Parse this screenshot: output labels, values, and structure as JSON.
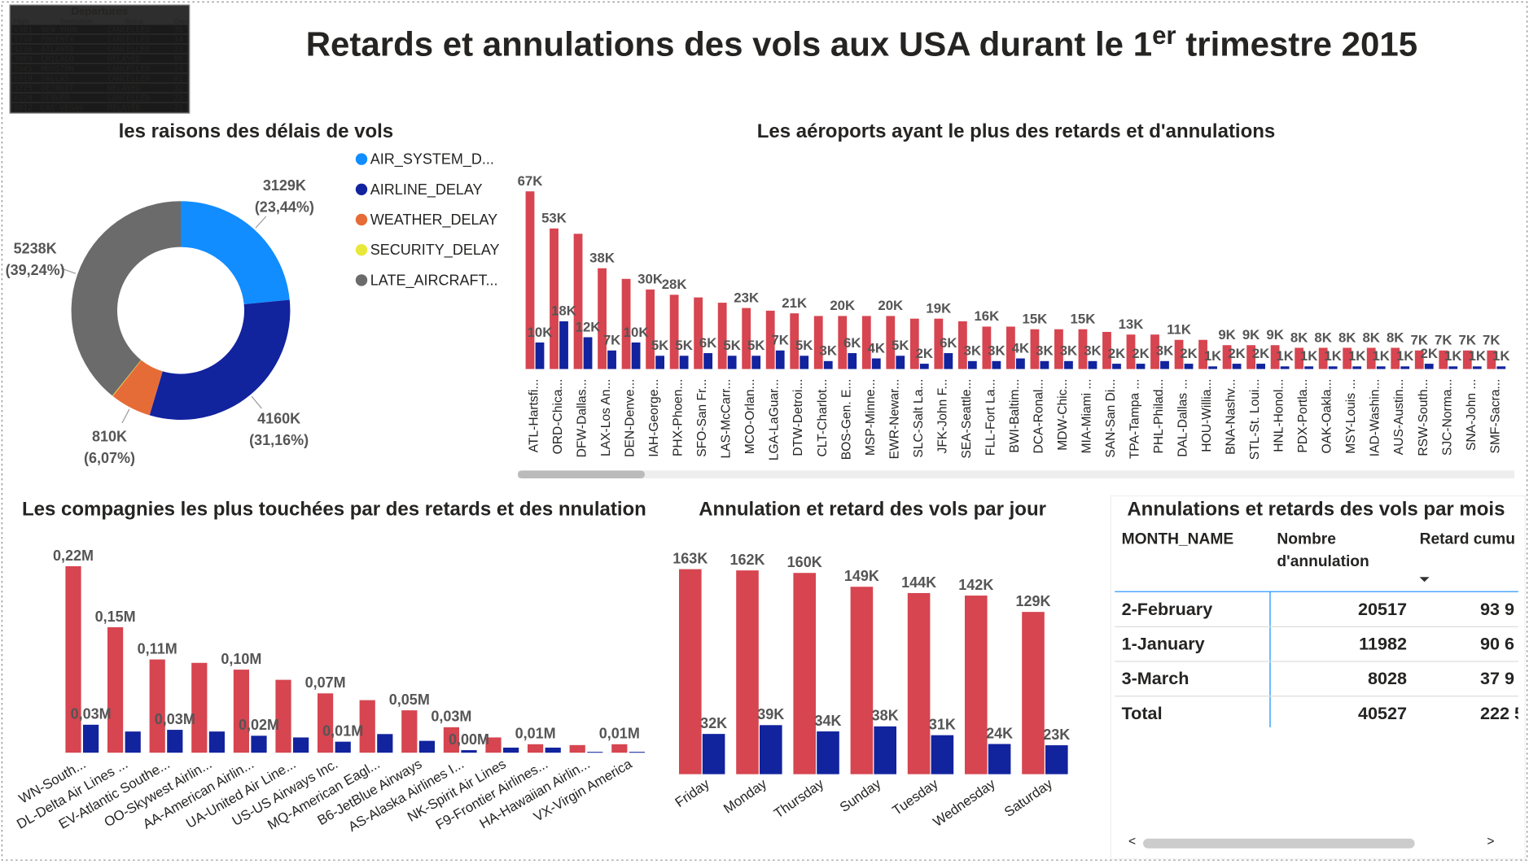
{
  "header": {
    "title": "Retards et annulations des vols aux USA durant le 1",
    "title_sup": "er",
    "title_end": " trimestre 2015"
  },
  "departures_board": {
    "title": "Departures",
    "columns": [
      "Flight",
      "Destination",
      "Status",
      "Gate"
    ],
    "rows": [
      [
        "0361",
        "NEW YORK",
        "CANCELLED",
        "36"
      ],
      [
        "1740",
        "PHOENIX",
        "CANCELLED",
        "14"
      ],
      [
        "4236",
        "ATLANTA",
        "CANCELLED",
        "23"
      ],
      [
        "3089",
        "CHICAGO",
        "DELAYED",
        "08"
      ],
      [
        "1645",
        "HOUSTON",
        "CANCELLED",
        "24"
      ],
      [
        "0919",
        "DALLAS",
        "CANCELLED",
        "01"
      ],
      [
        "3725",
        "DETROIT",
        "DELAYED",
        "32"
      ],
      [
        "0220",
        "DENVER",
        "CANCELLED",
        "22"
      ],
      [
        "8812",
        "LAS VEGAS",
        "DELAYED",
        "21"
      ]
    ]
  },
  "chart_data": [
    {
      "type": "donut",
      "title": "les raisons des délais de vols",
      "series": [
        {
          "name": "AIR_SYSTEM_D...",
          "color": "#118dff",
          "value": 3129,
          "value_label": "3129K",
          "percent": 23.44,
          "percent_label": "(23,44%)"
        },
        {
          "name": "AIRLINE_DELAY",
          "color": "#12239e",
          "value": 4160,
          "value_label": "4160K",
          "percent": 31.16,
          "percent_label": "(31,16%)"
        },
        {
          "name": "WEATHER_DELAY",
          "color": "#e66c37",
          "value": 810,
          "value_label": "810K",
          "percent": 6.07,
          "percent_label": "(6,07%)"
        },
        {
          "name": "SECURITY_DELAY",
          "color": "#e8e83a",
          "value": 12,
          "value_label": null,
          "percent": null,
          "percent_label": null
        },
        {
          "name": "LATE_AIRCRAFT...",
          "color": "#6b6b6b",
          "value": 5238,
          "value_label": "5238K",
          "percent": 39.24,
          "percent_label": "(39,24%)"
        }
      ]
    },
    {
      "type": "bar",
      "title": "Les aéroports ayant le plus des retards et d'annulations",
      "categories": [
        "ATL-Hartsfi...",
        "ORD-Chica...",
        "DFW-Dallas...",
        "LAX-Los An...",
        "DEN-Denve...",
        "IAH-George...",
        "PHX-Phoen...",
        "SFO-San Fr...",
        "LAS-McCarr...",
        "MCO-Orlan...",
        "LGA-LaGuar...",
        "DTW-Detroi...",
        "CLT-Charlot...",
        "BOS-Gen. E...",
        "MSP-Minne...",
        "EWR-Newar...",
        "SLC-Salt La...",
        "JFK-John F...",
        "SEA-Seattle...",
        "FLL-Fort La...",
        "BWI-Baltim...",
        "DCA-Ronal...",
        "MDW-Chic...",
        "MIA-Miami ...",
        "SAN-San Di...",
        "TPA-Tampa ...",
        "PHL-Philad...",
        "DAL-Dallas ...",
        "HOU-Willia...",
        "BNA-Nashv...",
        "STL-St. Loui...",
        "HNL-Honol...",
        "PDX-Portla...",
        "OAK-Oakla...",
        "MSY-Louis ...",
        "IAD-Washin...",
        "AUS-Austin...",
        "RSW-South...",
        "SJC-Norma...",
        "SNA-John ...",
        "SMF-Sacra..."
      ],
      "series": [
        {
          "color": "#d64550",
          "values": [
            67,
            53,
            51,
            38,
            34,
            30,
            28,
            27,
            25,
            23,
            22,
            21,
            20,
            20,
            20,
            20,
            19,
            19,
            18,
            16,
            16,
            15,
            15,
            15,
            14,
            13,
            13,
            11,
            11,
            9,
            9,
            9,
            8,
            8,
            8,
            8,
            8,
            7,
            7,
            7,
            7
          ],
          "value_labels": [
            "67K",
            "53K",
            null,
            "38K",
            null,
            "30K",
            "28K",
            null,
            null,
            "23K",
            null,
            "21K",
            null,
            "20K",
            null,
            "20K",
            null,
            "19K",
            null,
            "16K",
            null,
            "15K",
            null,
            "15K",
            null,
            "13K",
            null,
            "11K",
            null,
            "9K",
            "9K",
            "9K",
            "8K",
            "8K",
            "8K",
            "8K",
            "8K",
            "7K",
            "7K",
            "7K",
            "7K"
          ]
        },
        {
          "color": "#12239e",
          "values": [
            10,
            18,
            12,
            7,
            10,
            5,
            5,
            6,
            5,
            5,
            7,
            5,
            3,
            6,
            4,
            5,
            2,
            6,
            3,
            3,
            4,
            3,
            3,
            3,
            2,
            2,
            3,
            2,
            1,
            2,
            2,
            1,
            1,
            1,
            1,
            1,
            1,
            2,
            1,
            1,
            1
          ],
          "value_labels": [
            "10K",
            "18K",
            "12K",
            "7K",
            "10K",
            "5K",
            "5K",
            "6K",
            "5K",
            "5K",
            "7K",
            "5K",
            "3K",
            "6K",
            "4K",
            "5K",
            "2K",
            "6K",
            "3K",
            "3K",
            "4K",
            "3K",
            "3K",
            "3K",
            "2K",
            "2K",
            "3K",
            "2K",
            "1K",
            "2K",
            "2K",
            "1K",
            "1K",
            "1K",
            "1K",
            "1K",
            "1K",
            "2K",
            "1K",
            "1K",
            "1K"
          ]
        }
      ]
    },
    {
      "type": "bar",
      "title": "Les compagnies les plus touchées par des retards et des nnulation",
      "categories": [
        "WN-South...",
        "DL-Delta Air Lines ...",
        "EV-Atlantic Southe...",
        "OO-Skywest Airlin...",
        "AA-American Airlin...",
        "UA-United Air Line...",
        "US-US Airways Inc.",
        "MQ-American Eagl...",
        "B6-JetBlue Airways",
        "AS-Alaska Airlines I...",
        "NK-Spirit Air Lines",
        "F9-Frontier Airlines...",
        "HA-Hawaiian Airlin...",
        "VX-Virgin America"
      ],
      "series": [
        {
          "color": "#d64550",
          "values": [
            0.22,
            0.148,
            0.11,
            0.106,
            0.098,
            0.086,
            0.07,
            0.062,
            0.05,
            0.03,
            0.018,
            0.01,
            0.009,
            0.01
          ],
          "value_labels": [
            "0,22M",
            "0,15M",
            "0,11M",
            null,
            "0,10M",
            null,
            "0,07M",
            null,
            "0,05M",
            "0,03M",
            null,
            "0,01M",
            null,
            "0,01M"
          ]
        },
        {
          "color": "#12239e",
          "values": [
            0.033,
            0.025,
            0.027,
            0.025,
            0.02,
            0.018,
            0.013,
            0.022,
            0.014,
            0.003,
            0.006,
            0.006,
            0.001,
            0.001
          ],
          "value_labels": [
            "0,03M",
            null,
            "0,03M",
            null,
            "0,02M",
            null,
            "0,01M",
            null,
            null,
            "0,00M",
            null,
            null,
            null,
            null
          ]
        }
      ]
    },
    {
      "type": "bar",
      "title": "Annulation et retard des vols par jour",
      "categories": [
        "Friday",
        "Monday",
        "Thursday",
        "Sunday",
        "Tuesday",
        "Wednesday",
        "Saturday"
      ],
      "series": [
        {
          "color": "#d64550",
          "values": [
            163,
            162,
            160,
            149,
            144,
            142,
            129
          ],
          "value_labels": [
            "163K",
            "162K",
            "160K",
            "149K",
            "144K",
            "142K",
            "129K"
          ]
        },
        {
          "color": "#12239e",
          "values": [
            32,
            39,
            34,
            38,
            31,
            24,
            23
          ],
          "value_labels": [
            "32K",
            "39K",
            "34K",
            "38K",
            "31K",
            "24K",
            "23K"
          ]
        }
      ]
    }
  ],
  "table": {
    "title": "Annulations et retards des vols par mois",
    "columns": [
      "MONTH_NAME",
      "Nombre d'annulation",
      "Retard cumu"
    ],
    "rows": [
      [
        "2-February",
        20517,
        "93 9"
      ],
      [
        "1-January",
        11982,
        "90 6"
      ],
      [
        "3-March",
        8028,
        "37 9"
      ],
      [
        "Total",
        40527,
        "222 5"
      ]
    ]
  }
}
